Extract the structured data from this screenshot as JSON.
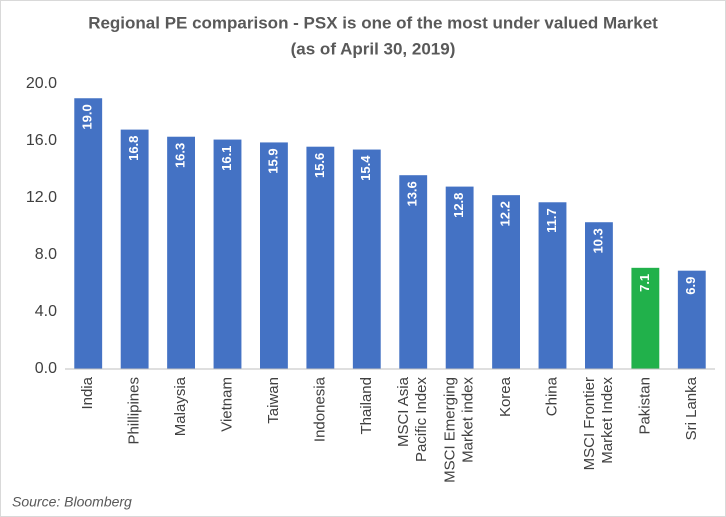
{
  "chart_data": {
    "type": "bar",
    "title": "Regional PE comparison - PSX is one of the most under valued Market",
    "subtitle": "(as of April 30, 2019)",
    "categories": [
      "India",
      "Phillipines",
      "Malaysia",
      "Vietnam",
      "Taiwan",
      "Indonesia",
      "Thailand",
      "MSCI Asia Pacific Index",
      "MSCI Emerging Market index",
      "Korea",
      "China",
      "MSCI Frontier Market Index",
      "Pakistan",
      "Sri Lanka"
    ],
    "values": [
      19,
      16.8,
      16.3,
      16.1,
      15.9,
      15.6,
      15.4,
      13.6,
      12.8,
      12.2,
      11.7,
      10.3,
      7.1,
      6.9
    ],
    "value_labels": [
      "19.0",
      "16.8",
      "16.3",
      "16.1",
      "15.9",
      "15.6",
      "15.4",
      "13.6",
      "12.8",
      "12.2",
      "11.7",
      "10.3",
      "7.1",
      "6.9"
    ],
    "colors": [
      "#4472c4",
      "#4472c4",
      "#4472c4",
      "#4472c4",
      "#4472c4",
      "#4472c4",
      "#4472c4",
      "#4472c4",
      "#4472c4",
      "#4472c4",
      "#4472c4",
      "#4472c4",
      "#21b14b",
      "#4472c4"
    ],
    "ylim": [
      0,
      20
    ],
    "yticks": [
      {
        "value": 0,
        "label": "0.0"
      },
      {
        "value": 4,
        "label": "4.0"
      },
      {
        "value": 8,
        "label": "8.0"
      },
      {
        "value": 12,
        "label": "12.0"
      },
      {
        "value": 16,
        "label": "16.0"
      },
      {
        "value": 20,
        "label": "20.0"
      }
    ],
    "grid": false,
    "source": "Source: Bloomberg"
  }
}
